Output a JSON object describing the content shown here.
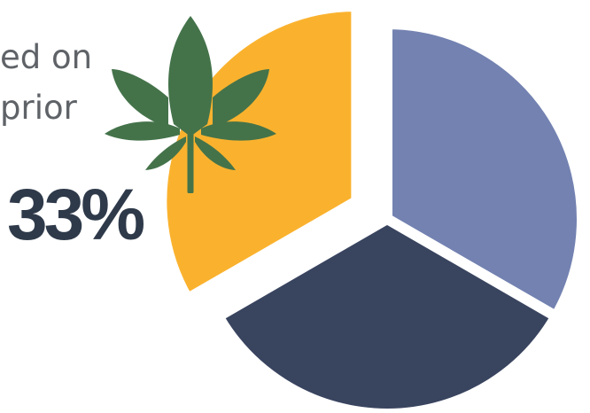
{
  "caption": {
    "line1": "ed on",
    "line2": "prior"
  },
  "highlight_percent": "33%",
  "icon": "cannabis-leaf-icon",
  "colors": {
    "slice_a": "#7382b1",
    "slice_b": "#39445f",
    "slice_c": "#fab22e",
    "leaf": "#44734a",
    "percent_text": "#2e3a4a",
    "caption_text": "#5f6368"
  },
  "chart_data": {
    "type": "pie",
    "exploded_slice": 2,
    "slices": [
      {
        "value": 33.3,
        "color": "#7382b1"
      },
      {
        "value": 33.3,
        "color": "#39445f"
      },
      {
        "value": 33.3,
        "color": "#fab22e"
      }
    ],
    "data_labels": [
      {
        "slice": 2,
        "text": "33%"
      }
    ],
    "legend": "none"
  }
}
